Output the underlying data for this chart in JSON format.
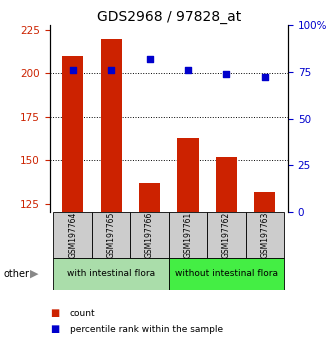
{
  "title": "GDS2968 / 97828_at",
  "samples": [
    "GSM197764",
    "GSM197765",
    "GSM197766",
    "GSM197761",
    "GSM197762",
    "GSM197763"
  ],
  "counts": [
    210,
    220,
    137,
    163,
    152,
    132
  ],
  "percentiles": [
    76,
    76,
    82,
    76,
    74,
    72
  ],
  "bar_color": "#CC2200",
  "dot_color": "#0000CC",
  "left_ylim": [
    120,
    228
  ],
  "left_yticks": [
    125,
    150,
    175,
    200,
    225
  ],
  "right_ylim": [
    0,
    100
  ],
  "right_yticks": [
    0,
    25,
    50,
    75,
    100
  ],
  "right_yticklabels": [
    "0",
    "25",
    "50",
    "75",
    "100%"
  ],
  "title_fontsize": 10,
  "tick_fontsize": 7.5,
  "plot_bg": "#ffffff",
  "group1_label": "with intestinal flora",
  "group2_label": "without intestinal flora",
  "group1_color": "#aaddaa",
  "group2_color": "#44ee44",
  "sample_box_color": "#cccccc",
  "other_label": "other"
}
